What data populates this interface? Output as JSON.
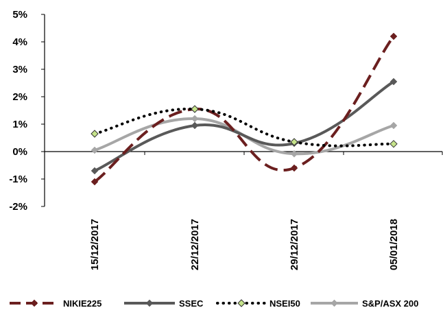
{
  "chart_data": {
    "type": "line",
    "title": "",
    "xlabel": "",
    "ylabel": "",
    "categories": [
      "15/12/2017",
      "22/12/2017",
      "29/12/2017",
      "05/01/2018"
    ],
    "yticks": [
      "5%",
      "4%",
      "3%",
      "2%",
      "1%",
      "0%",
      "-1%",
      "-2%"
    ],
    "ylim": [
      -2,
      5
    ],
    "grid": false,
    "legend_position": "bottom",
    "series": [
      {
        "name": "NIKIE225",
        "values": [
          -1.1,
          1.55,
          -0.6,
          4.2
        ],
        "color": "#6b1f1f",
        "style": "dashed",
        "marker": "diamond"
      },
      {
        "name": "SSEC",
        "values": [
          -0.7,
          0.95,
          0.3,
          2.55
        ],
        "color": "#595959",
        "style": "solid",
        "marker": "diamond"
      },
      {
        "name": "NSEI50",
        "values": [
          0.65,
          1.55,
          0.35,
          0.28
        ],
        "color": "#000000",
        "style": "dotted",
        "marker": "diamond-green",
        "marker_fill": "#c6e48b"
      },
      {
        "name": "S&P/ASX 200",
        "values": [
          0.05,
          1.2,
          -0.08,
          0.95
        ],
        "color": "#a6a6a6",
        "style": "solid",
        "marker": "diamond"
      }
    ]
  }
}
